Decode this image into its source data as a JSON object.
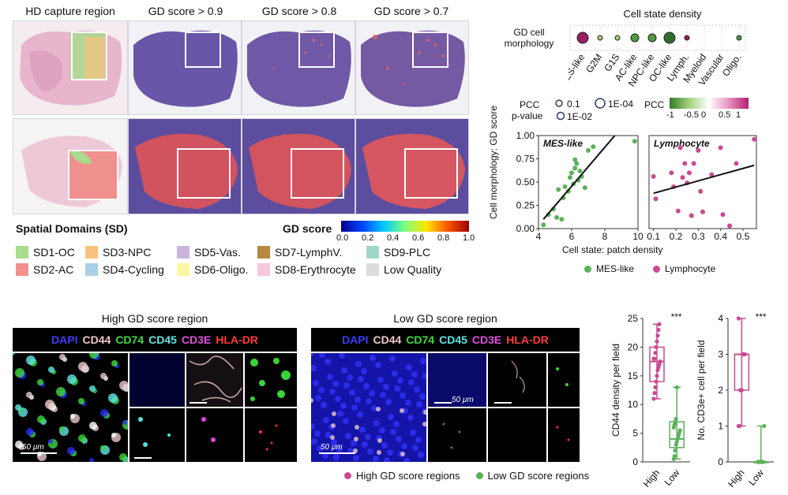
{
  "panel_a": {
    "headers": [
      "HD capture region",
      "GD score > 0.9",
      "GD score > 0.8",
      "GD score > 0.7"
    ],
    "sd_title": "Spatial Domains (SD)",
    "gd_score_label": "GD score",
    "colorbar_ticks": [
      "0.0",
      "0.2",
      "0.4",
      "0.6",
      "0.8",
      "1.0"
    ],
    "domains": [
      {
        "label": "SD1-OC",
        "color": "#a9dc8e"
      },
      {
        "label": "SD2-AC",
        "color": "#f0908f"
      },
      {
        "label": "SD3-NPC",
        "color": "#f7c27c"
      },
      {
        "label": "SD4-Cycling",
        "color": "#a8cfe6"
      },
      {
        "label": "SD5-Vas.",
        "color": "#c9b4dc"
      },
      {
        "label": "SD6-Oligo.",
        "color": "#fbf6a6"
      },
      {
        "label": "SD7-LymphV.",
        "color": "#b98941"
      },
      {
        "label": "SD8-Erythrocyte",
        "color": "#f7c6df"
      },
      {
        "label": "SD9-PLC",
        "color": "#9fd8cb"
      },
      {
        "label": "Low Quality",
        "color": "#dcdcdc"
      }
    ]
  },
  "panel_b": {
    "title": "Cell state density",
    "row_label": "GD cell morphology",
    "states": [
      {
        "name": "MES-like",
        "size": 3,
        "pcc": 0.95
      },
      {
        "name": "G2M",
        "size": 1,
        "pcc": -0.15
      },
      {
        "name": "G1S",
        "size": 1,
        "pcc": -0.3
      },
      {
        "name": "AC-like",
        "size": 2,
        "pcc": -0.6
      },
      {
        "name": "NPC-like",
        "size": 2,
        "pcc": -0.7
      },
      {
        "name": "OC-like",
        "size": 3,
        "pcc": -0.85
      },
      {
        "name": "Lymph.",
        "size": 1,
        "pcc": 0.8
      },
      {
        "name": "Myeloid",
        "size": 0,
        "pcc": 0
      },
      {
        "name": "Vascular",
        "size": 0,
        "pcc": 0
      },
      {
        "name": "Oligo.",
        "size": 1,
        "pcc": -0.6
      }
    ],
    "pcc_pvalue_label_1": "PCC",
    "pcc_pvalue_label_2": "p-value",
    "size_legend": [
      "0.1",
      "1E-04",
      "1E-02"
    ],
    "pcc_label": "PCC",
    "pcc_ticks": [
      "-1",
      "-0.5",
      "0",
      "0.5",
      "1"
    ]
  },
  "chart_data": [
    {
      "type": "scatter",
      "title": "MES-like",
      "ylabel": "Cell morphology: GD score",
      "xlabel": "Cell state: patch density",
      "xlim": [
        4,
        10
      ],
      "ylim": [
        0,
        1
      ],
      "xticks": [
        "4",
        "6",
        "8",
        "10"
      ],
      "yticks": [
        "0.00",
        "0.25",
        "0.50",
        "0.75",
        "1.00"
      ],
      "color": "#5bb15b",
      "x": [
        4.3,
        4.6,
        4.9,
        5.1,
        5.2,
        5.4,
        5.5,
        5.6,
        5.8,
        5.9,
        6.0,
        6.1,
        6.2,
        6.2,
        6.3,
        6.4,
        6.5,
        6.6,
        6.8,
        7.0,
        7.3,
        9.8
      ],
      "y": [
        0.04,
        0.15,
        0.21,
        0.12,
        0.42,
        0.1,
        0.33,
        0.45,
        0.4,
        0.55,
        0.6,
        0.48,
        0.65,
        0.74,
        0.7,
        0.52,
        0.62,
        0.56,
        0.44,
        0.84,
        0.88,
        0.94
      ],
      "fit": [
        [
          4.3,
          0.1
        ],
        [
          8.6,
          1.0
        ]
      ]
    },
    {
      "type": "scatter",
      "title": "Lymphocyte",
      "xlim": [
        0.08,
        0.56
      ],
      "ylim": [
        0,
        1
      ],
      "xticks": [
        "0.1",
        "0.2",
        "0.3",
        "0.4",
        "0.5"
      ],
      "color": "#c94a92",
      "x": [
        0.1,
        0.11,
        0.18,
        0.19,
        0.21,
        0.22,
        0.23,
        0.24,
        0.25,
        0.26,
        0.27,
        0.28,
        0.3,
        0.31,
        0.32,
        0.36,
        0.4,
        0.41,
        0.44,
        0.47,
        0.55
      ],
      "y": [
        0.56,
        0.32,
        0.6,
        0.45,
        0.19,
        0.87,
        0.55,
        0.7,
        0.49,
        0.6,
        0.14,
        0.7,
        0.84,
        0.4,
        0.18,
        0.58,
        0.87,
        0.15,
        0.03,
        0.7,
        0.96
      ],
      "fit": [
        [
          0.1,
          0.38
        ],
        [
          0.55,
          0.68
        ]
      ]
    },
    {
      "type": "box",
      "ylabel": "CD44 density per field",
      "categories": [
        "High",
        "Low"
      ],
      "ylim": [
        0,
        25
      ],
      "yticks": [
        "0",
        "5",
        "10",
        "15",
        "20",
        "25"
      ],
      "significance": "***",
      "colors": [
        "#c94a92",
        "#5bb15b"
      ],
      "high": {
        "min": 11,
        "q1": 14,
        "median": 17.5,
        "q3": 20,
        "max": 24,
        "points": [
          11,
          12,
          13,
          14,
          15,
          16,
          16.5,
          17,
          17.5,
          18,
          18,
          19,
          20,
          21,
          22,
          23,
          24
        ]
      },
      "low": {
        "min": 0.5,
        "q1": 2.5,
        "median": 4,
        "q3": 7,
        "max": 13,
        "points": [
          0.5,
          1,
          2,
          3,
          3.5,
          4,
          4.5,
          5,
          5.5,
          6,
          6.5,
          7,
          7.5,
          13
        ]
      }
    },
    {
      "type": "box",
      "ylabel": "No. CD3e+ cell per field",
      "categories": [
        "High",
        "Low"
      ],
      "ylim": [
        0,
        4
      ],
      "yticks": [
        "0",
        "1",
        "2",
        "3",
        "4"
      ],
      "significance": "***",
      "colors": [
        "#c94a92",
        "#5bb15b"
      ],
      "high": {
        "min": 1,
        "q1": 2,
        "median": 3,
        "q3": 3,
        "max": 4,
        "points": [
          1,
          1,
          2,
          2,
          2,
          3,
          3,
          3,
          3,
          4
        ]
      },
      "low": {
        "min": 0,
        "q1": 0,
        "median": 0,
        "q3": 0,
        "max": 1,
        "points": [
          0,
          0,
          0,
          0,
          0,
          0,
          0,
          0,
          1
        ]
      }
    }
  ],
  "scatter_legend": [
    "MES-like",
    "Lymphocyte"
  ],
  "panel_d": {
    "high_title": "High GD score region",
    "low_title": "Low GD score region",
    "markers": [
      {
        "label": "DAPI",
        "color": "#3b3bff"
      },
      {
        "label": "CD44",
        "color": "#f2c6c6"
      },
      {
        "label": "CD74",
        "color": "#3ddc3d"
      },
      {
        "label": "CD45",
        "color": "#5fe6e6"
      },
      {
        "label": "CD3E",
        "color": "#e04ee0"
      },
      {
        "label": "HLA-DR",
        "color": "#ff3b3b"
      }
    ],
    "scale": "50 μm",
    "legend": [
      "High GD score regions",
      "Low GD score regions"
    ]
  }
}
